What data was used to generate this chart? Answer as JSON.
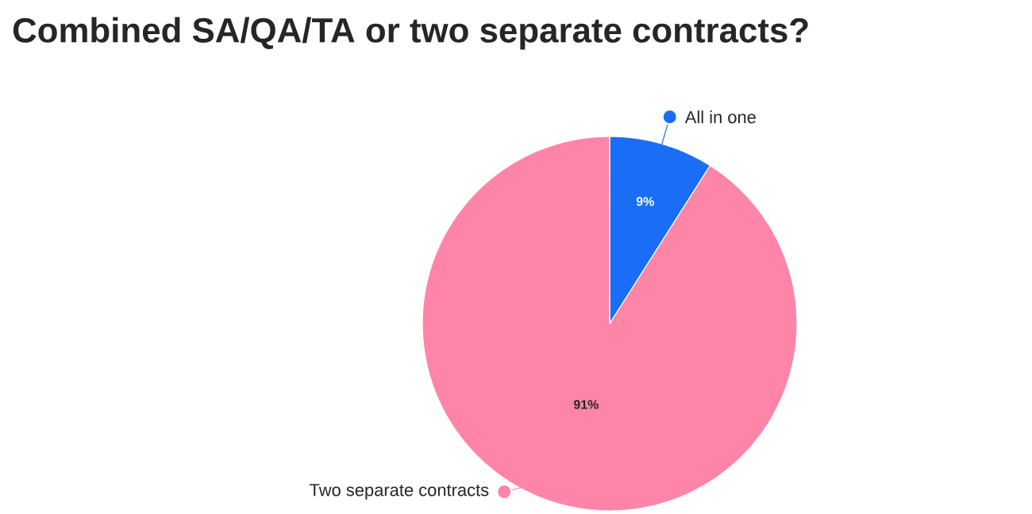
{
  "chart_data": {
    "type": "pie",
    "title": "Combined SA/QA/TA or two separate contracts?",
    "categories": [
      "All in one",
      "Two separate contracts"
    ],
    "values": [
      9,
      91
    ],
    "colors": [
      "#1a6ef5",
      "#ff85a8"
    ],
    "value_labels": [
      "9%",
      "91%"
    ]
  }
}
